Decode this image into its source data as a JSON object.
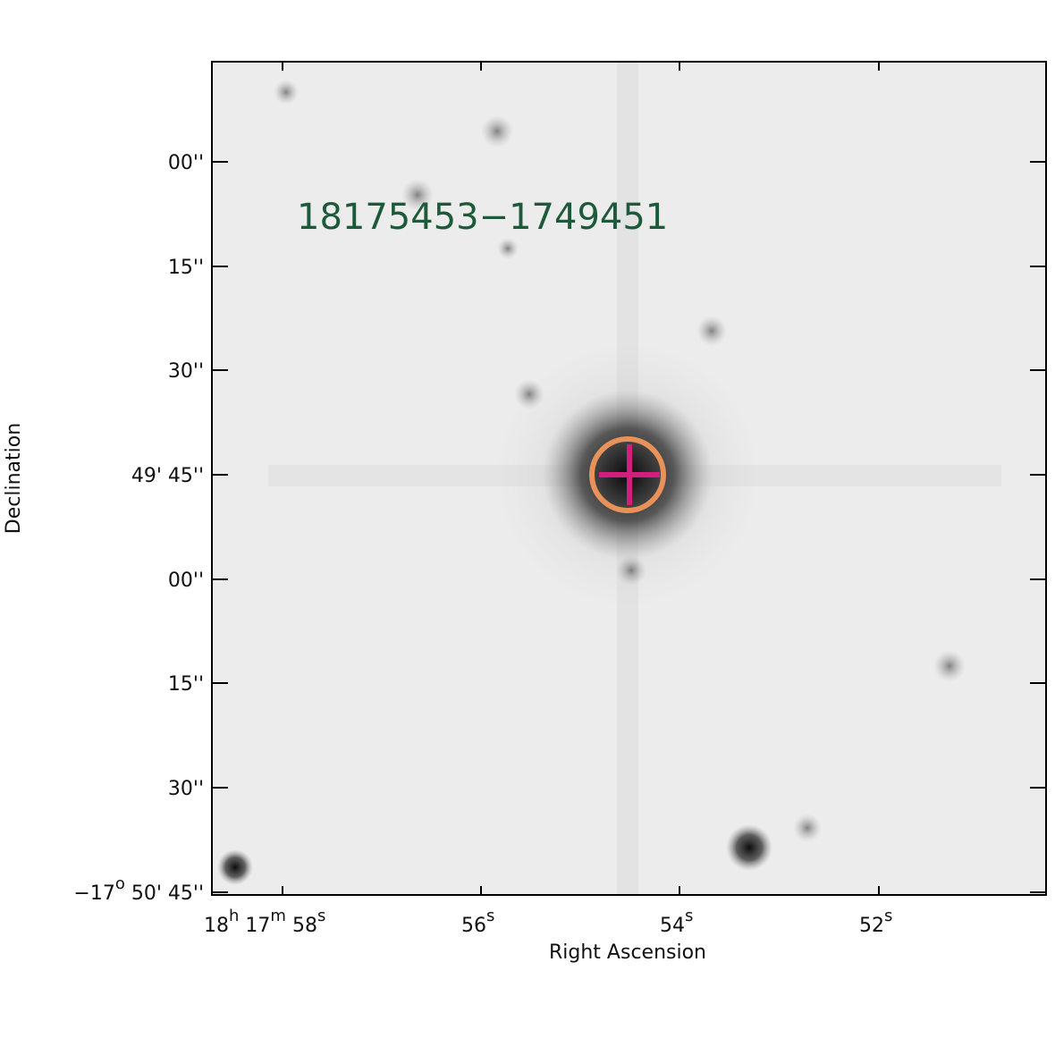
{
  "title": "18175453−1749451",
  "x_axis": {
    "label": "Right Ascension",
    "ticks": [
      [
        [
          "18",
          "h"
        ],
        [
          " 17",
          "m"
        ],
        [
          " 58",
          "s"
        ]
      ],
      [
        [
          "56",
          "s"
        ]
      ],
      [
        [
          "54",
          "s"
        ]
      ],
      [
        [
          "52",
          "s"
        ]
      ]
    ]
  },
  "y_axis": {
    "label": "Declination",
    "ticks": [
      [
        [
          "00''",
          ""
        ]
      ],
      [
        [
          "15''",
          ""
        ]
      ],
      [
        [
          "30''",
          ""
        ]
      ],
      [
        [
          "49' 45''",
          ""
        ]
      ],
      [
        [
          "00''",
          ""
        ]
      ],
      [
        [
          "15''",
          ""
        ]
      ],
      [
        [
          "30''",
          ""
        ]
      ],
      [
        [
          "−17",
          "o"
        ],
        [
          " 50' 45''",
          ""
        ]
      ]
    ]
  }
}
